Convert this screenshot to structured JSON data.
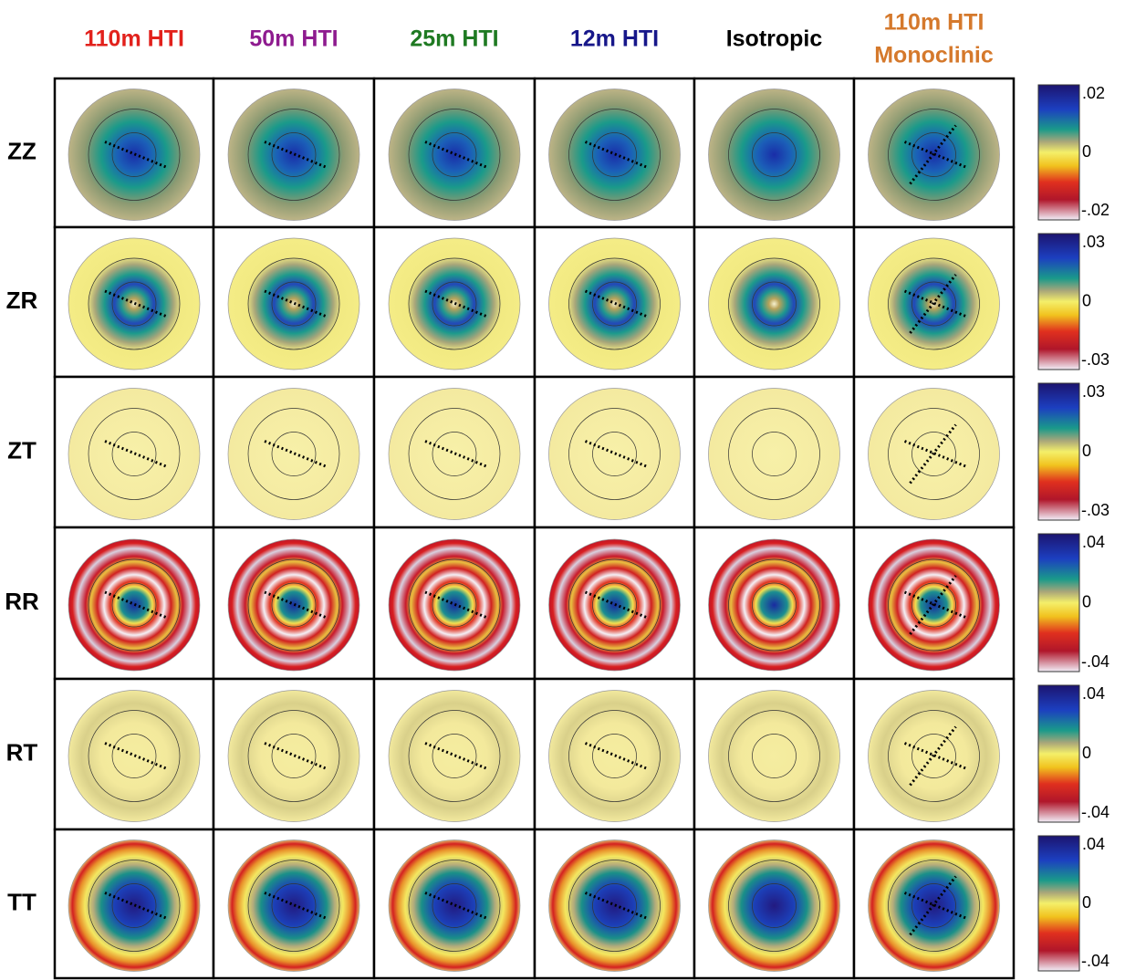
{
  "columns": [
    {
      "lines": [
        "110m HTI"
      ],
      "color": "#e2211c"
    },
    {
      "lines": [
        "50m HTI"
      ],
      "color": "#8e1b8f"
    },
    {
      "lines": [
        "25m HTI"
      ],
      "color": "#1f7a22"
    },
    {
      "lines": [
        "12m HTI"
      ],
      "color": "#17178a"
    },
    {
      "lines": [
        "Isotropic"
      ],
      "color": "#000000"
    },
    {
      "lines": [
        "110m HTI",
        "Monoclinic"
      ],
      "color": "#d5792c"
    }
  ],
  "rows": [
    {
      "label": "ZZ",
      "scale": [
        ".02",
        "0",
        "-.02"
      ]
    },
    {
      "label": "ZR",
      "scale": [
        ".03",
        "0",
        "-.03"
      ]
    },
    {
      "label": "ZT",
      "scale": [
        ".03",
        "0",
        "-.03"
      ]
    },
    {
      "label": "RR",
      "scale": [
        ".04",
        "0",
        "-.04"
      ]
    },
    {
      "label": "RT",
      "scale": [
        ".04",
        "0",
        "-.04"
      ]
    },
    {
      "label": "TT",
      "scale": [
        ".04",
        "0",
        "-.04"
      ]
    }
  ]
}
